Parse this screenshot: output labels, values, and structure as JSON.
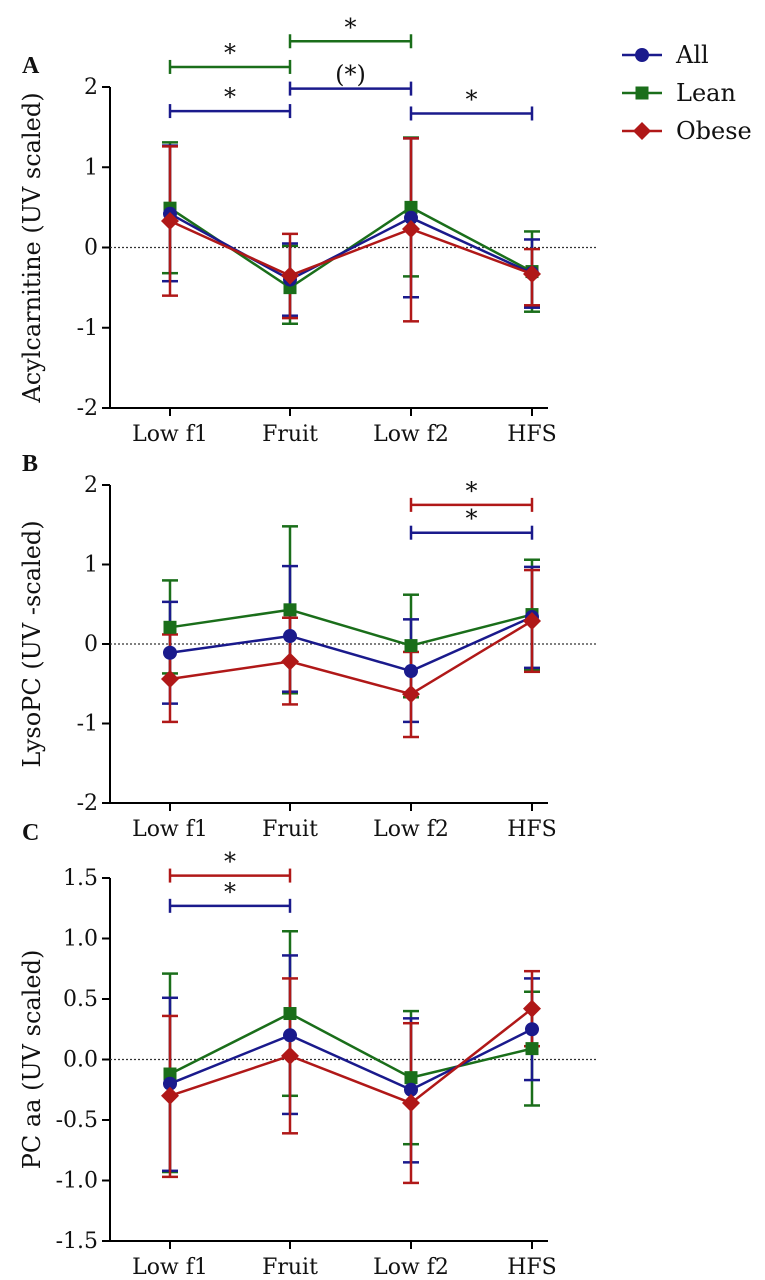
{
  "legend": [
    {
      "name": "All",
      "color": "#1a1a8c",
      "marker": "circle"
    },
    {
      "name": "Lean",
      "color": "#1a6e1a",
      "marker": "square"
    },
    {
      "name": "Obese",
      "color": "#b01818",
      "marker": "diamond"
    }
  ],
  "chart_data": [
    {
      "panel": "A",
      "type": "line",
      "ylabel": "Acylcarnitine (UV scaled)",
      "categories": [
        "Low f1",
        "Fruit",
        "Low f2",
        "HFS"
      ],
      "ylim": [
        -2,
        2
      ],
      "yticks": [
        -2,
        -1,
        0,
        1,
        2
      ],
      "ytick_labels": [
        "-2",
        "-1",
        "0",
        "1",
        "2"
      ],
      "series": [
        {
          "name": "All",
          "values": [
            0.42,
            -0.4,
            0.37,
            -0.32
          ],
          "err_low": [
            -0.42,
            -0.85,
            -0.62,
            -0.75
          ],
          "err_high": [
            1.27,
            0.05,
            1.36,
            0.1
          ]
        },
        {
          "name": "Lean",
          "values": [
            0.49,
            -0.5,
            0.5,
            -0.3
          ],
          "err_low": [
            -0.32,
            -0.95,
            -0.36,
            -0.8
          ],
          "err_high": [
            1.31,
            0.02,
            1.37,
            0.2
          ]
        },
        {
          "name": "Obese",
          "values": [
            0.33,
            -0.35,
            0.23,
            -0.33
          ],
          "err_low": [
            -0.6,
            -0.88,
            -0.92,
            -0.72
          ],
          "err_high": [
            1.26,
            0.17,
            1.36,
            -0.02
          ]
        }
      ],
      "significance": [
        {
          "series": "Lean",
          "from": 0,
          "to": 1,
          "label": "*",
          "y": 2.25
        },
        {
          "series": "All",
          "from": 0,
          "to": 1,
          "label": "*",
          "y": 1.7
        },
        {
          "series": "Lean",
          "from": 1,
          "to": 2,
          "label": "*",
          "y": 2.57
        },
        {
          "series": "All",
          "from": 1,
          "to": 2,
          "label": "(*)",
          "y": 1.98
        },
        {
          "series": "All",
          "from": 2,
          "to": 3,
          "label": "*",
          "y": 1.67
        }
      ]
    },
    {
      "panel": "B",
      "type": "line",
      "ylabel": "LysoPC (UV -scaled)",
      "categories": [
        "Low f1",
        "Fruit",
        "Low f2",
        "HFS"
      ],
      "ylim": [
        -2,
        2
      ],
      "yticks": [
        -2,
        -1,
        0,
        1,
        2
      ],
      "ytick_labels": [
        "-2",
        "-1",
        "0",
        "1",
        "2"
      ],
      "series": [
        {
          "name": "All",
          "values": [
            -0.11,
            0.1,
            -0.34,
            0.34
          ],
          "err_low": [
            -0.75,
            -0.6,
            -0.98,
            -0.3
          ],
          "err_high": [
            0.53,
            0.98,
            0.31,
            0.97
          ]
        },
        {
          "name": "Lean",
          "values": [
            0.21,
            0.43,
            -0.02,
            0.37
          ],
          "err_low": [
            -0.37,
            -0.62,
            -0.67,
            -0.33
          ],
          "err_high": [
            0.8,
            1.48,
            0.62,
            1.06
          ]
        },
        {
          "name": "Obese",
          "values": [
            -0.44,
            -0.22,
            -0.63,
            0.29
          ],
          "err_low": [
            -0.98,
            -0.76,
            -1.17,
            -0.35
          ],
          "err_high": [
            0.12,
            0.33,
            -0.1,
            0.93
          ]
        }
      ],
      "significance": [
        {
          "series": "Obese",
          "from": 2,
          "to": 3,
          "label": "*",
          "y": 1.75
        },
        {
          "series": "All",
          "from": 2,
          "to": 3,
          "label": "*",
          "y": 1.4
        }
      ]
    },
    {
      "panel": "C",
      "type": "line",
      "ylabel": "PC aa (UV scaled)",
      "categories": [
        "Low f1",
        "Fruit",
        "Low f2",
        "HFS"
      ],
      "ylim": [
        -1.5,
        1.5
      ],
      "yticks": [
        -1.5,
        -1.0,
        -0.5,
        0.0,
        0.5,
        1.0,
        1.5
      ],
      "ytick_labels": [
        "-1.5",
        "-1.0",
        "-0.5",
        "0.0",
        "0.5",
        "1.0",
        "1.5"
      ],
      "series": [
        {
          "name": "All",
          "values": [
            -0.2,
            0.2,
            -0.25,
            0.25
          ],
          "err_low": [
            -0.92,
            -0.45,
            -0.85,
            -0.17
          ],
          "err_high": [
            0.51,
            0.86,
            0.34,
            0.67
          ]
        },
        {
          "name": "Lean",
          "values": [
            -0.12,
            0.38,
            -0.15,
            0.09
          ],
          "err_low": [
            -0.93,
            -0.3,
            -0.7,
            -0.38
          ],
          "err_high": [
            0.71,
            1.06,
            0.4,
            0.56
          ]
        },
        {
          "name": "Obese",
          "values": [
            -0.3,
            0.03,
            -0.36,
            0.42
          ],
          "err_low": [
            -0.97,
            -0.61,
            -1.02,
            0.11
          ],
          "err_high": [
            0.36,
            0.67,
            0.3,
            0.73
          ]
        }
      ],
      "significance": [
        {
          "series": "Obese",
          "from": 0,
          "to": 1,
          "label": "*",
          "y": 1.52
        },
        {
          "series": "All",
          "from": 0,
          "to": 1,
          "label": "*",
          "y": 1.27
        }
      ]
    }
  ]
}
